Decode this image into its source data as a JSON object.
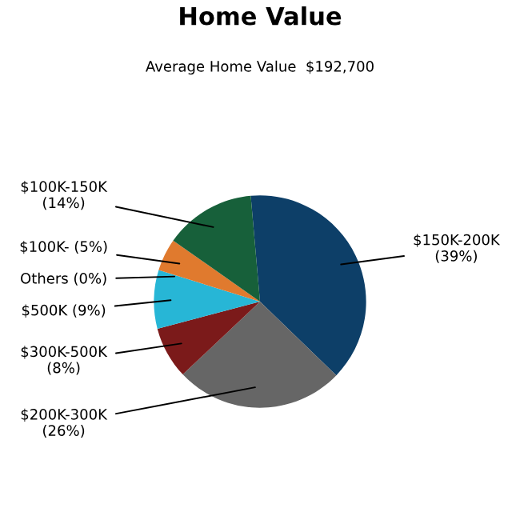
{
  "chart_data": {
    "type": "pie",
    "title": "Home Value",
    "subtitle": "Average Home Value  $192,700",
    "categories": [
      "$150K-200K",
      "$200K-300K",
      "$300K-500K",
      "$500K",
      "Others",
      "$100K-",
      "$100K-150K"
    ],
    "values": [
      39,
      26,
      8,
      9,
      0,
      5,
      14
    ],
    "value_labels": [
      "(39%)",
      "(26%)",
      "(8%)",
      "(9%)",
      "(0%)",
      "(5%)",
      "(14%)"
    ],
    "colors": [
      "#0d3f68",
      "#666666",
      "#7b1a1a",
      "#27b6d6",
      "#999999",
      "#e07a2e",
      "#17603a"
    ]
  }
}
